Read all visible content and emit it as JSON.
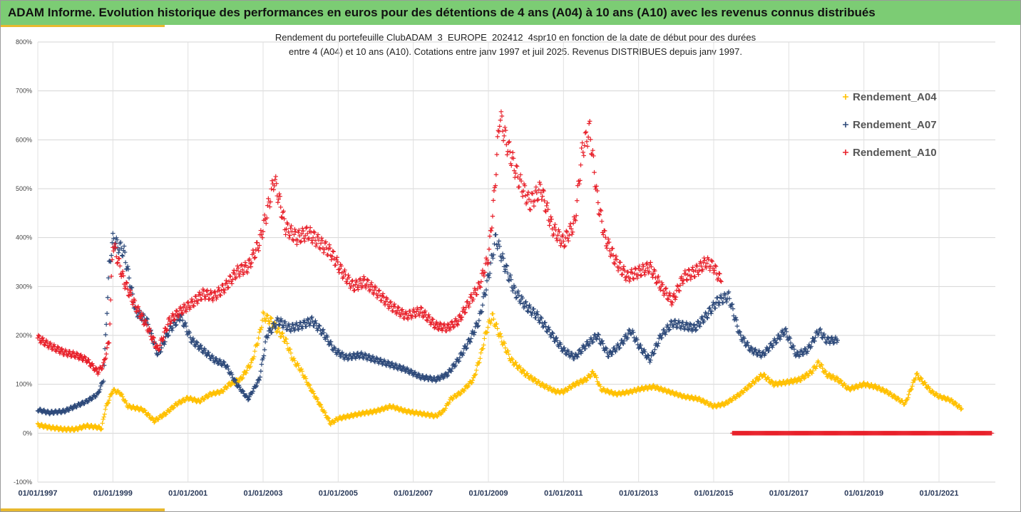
{
  "header": {
    "title": "ADAM Informe. Evolution historique des performances en euros pour des détentions de 4 ans (A04) à 10 ans (A10) avec les revenus connus distribués"
  },
  "chart_data": {
    "type": "scatter",
    "title": "Rendement du portefeuille ClubADAM_3_EUROPE_202412_4spr10  en fonction de la date de début pour des durées",
    "subtitle": "entre 4 (A04) et 10 ans (A10). Cotations entre janv 1997 et juil 2025. Revenus DISTRIBUES depuis janv 1997.",
    "xlabel": "",
    "ylabel": "",
    "ylim": [
      -100,
      800
    ],
    "xlim": [
      1997.0,
      2022.5
    ],
    "y_ticks": [
      "-100%",
      "0%",
      "100%",
      "200%",
      "300%",
      "400%",
      "500%",
      "600%",
      "700%",
      "800%"
    ],
    "y_tick_values": [
      -100,
      0,
      100,
      200,
      300,
      400,
      500,
      600,
      700,
      800
    ],
    "x_ticks": [
      "01/01/1997",
      "01/01/1999",
      "01/01/2001",
      "01/01/2003",
      "01/01/2005",
      "01/01/2007",
      "01/01/2009",
      "01/01/2011",
      "01/01/2013",
      "01/01/2015",
      "01/01/2017",
      "01/01/2019",
      "01/01/2021"
    ],
    "x_tick_values": [
      1997,
      1999,
      2001,
      2003,
      2005,
      2007,
      2009,
      2011,
      2013,
      2015,
      2017,
      2019,
      2021
    ],
    "grid": "horizontal",
    "legend_position": "right",
    "marker": "+",
    "series": [
      {
        "name": "Rendement_A04",
        "color": "#ffc000",
        "x": [
          1997.0,
          1997.3,
          1997.7,
          1998.0,
          1998.3,
          1998.6,
          1998.7,
          1998.8,
          1999.0,
          1999.2,
          1999.4,
          1999.8,
          2000.1,
          2000.4,
          2000.7,
          2001.0,
          2001.3,
          2001.6,
          2001.9,
          2002.1,
          2002.4,
          2002.7,
          2002.9,
          2003.0,
          2003.2,
          2003.4,
          2003.6,
          2003.8,
          2004.0,
          2004.2,
          2004.5,
          2004.8,
          2005.0,
          2005.3,
          2005.6,
          2006.0,
          2006.4,
          2006.8,
          2007.2,
          2007.6,
          2007.8,
          2008.0,
          2008.3,
          2008.6,
          2008.8,
          2008.95,
          2009.1,
          2009.3,
          2009.6,
          2010.0,
          2010.4,
          2010.8,
          2011.0,
          2011.3,
          2011.6,
          2011.8,
          2012.0,
          2012.4,
          2012.8,
          2013.0,
          2013.4,
          2013.8,
          2014.2,
          2014.6,
          2015.0,
          2015.3,
          2015.7,
          2016.0,
          2016.3,
          2016.6,
          2017.0,
          2017.3,
          2017.6,
          2017.8,
          2018.0,
          2018.3,
          2018.6,
          2019.0,
          2019.3,
          2019.6,
          2019.9,
          2020.1,
          2020.4,
          2020.8,
          2021.0,
          2021.3,
          2021.6
        ],
        "y": [
          17,
          12,
          8,
          8,
          15,
          12,
          10,
          50,
          88,
          82,
          55,
          48,
          25,
          40,
          60,
          72,
          65,
          80,
          85,
          100,
          110,
          145,
          200,
          240,
          230,
          210,
          190,
          150,
          130,
          100,
          60,
          20,
          30,
          35,
          40,
          45,
          55,
          45,
          40,
          35,
          45,
          70,
          85,
          110,
          160,
          210,
          240,
          200,
          150,
          120,
          100,
          85,
          85,
          100,
          110,
          125,
          90,
          80,
          85,
          90,
          95,
          85,
          75,
          70,
          55,
          60,
          80,
          100,
          120,
          100,
          105,
          110,
          125,
          145,
          120,
          110,
          90,
          100,
          95,
          85,
          70,
          60,
          120,
          85,
          75,
          68,
          50
        ]
      },
      {
        "name": "Rendement_A07",
        "color": "#2e4a7a",
        "x": [
          1997.0,
          1997.3,
          1997.7,
          1998.0,
          1998.3,
          1998.6,
          1998.75,
          1998.9,
          1999.0,
          1999.3,
          1999.6,
          1999.9,
          2000.2,
          2000.5,
          2000.8,
          2001.1,
          2001.4,
          2001.7,
          2002.0,
          2002.3,
          2002.6,
          2002.9,
          2003.1,
          2003.4,
          2003.7,
          2004.0,
          2004.3,
          2004.6,
          2004.9,
          2005.2,
          2005.6,
          2006.0,
          2006.4,
          2006.8,
          2007.2,
          2007.6,
          2007.9,
          2008.2,
          2008.5,
          2008.75,
          2009.0,
          2009.2,
          2009.4,
          2009.7,
          2010.0,
          2010.3,
          2010.7,
          2011.0,
          2011.3,
          2011.6,
          2011.9,
          2012.2,
          2012.5,
          2012.8,
          2013.0,
          2013.3,
          2013.6,
          2013.9,
          2014.2,
          2014.5,
          2014.8,
          2015.1,
          2015.4,
          2015.7,
          2016.0,
          2016.3,
          2016.6,
          2016.9,
          2017.2,
          2017.5,
          2017.8,
          2018.0,
          2018.3
        ],
        "y": [
          48,
          42,
          45,
          55,
          65,
          80,
          110,
          340,
          395,
          370,
          250,
          230,
          160,
          210,
          240,
          190,
          170,
          150,
          140,
          100,
          70,
          110,
          200,
          230,
          215,
          220,
          230,
          205,
          170,
          155,
          160,
          150,
          140,
          130,
          115,
          110,
          120,
          150,
          190,
          230,
          320,
          400,
          350,
          290,
          260,
          240,
          200,
          170,
          155,
          180,
          200,
          160,
          180,
          210,
          180,
          150,
          200,
          225,
          220,
          215,
          240,
          270,
          280,
          200,
          170,
          160,
          185,
          210,
          160,
          170,
          210,
          190,
          190
        ]
      },
      {
        "name": "Rendement_A10",
        "color": "#e8202a",
        "x": [
          1997.0,
          1997.3,
          1997.7,
          1998.0,
          1998.3,
          1998.6,
          1998.75,
          1998.9,
          1999.0,
          1999.3,
          1999.6,
          1999.9,
          2000.2,
          2000.5,
          2000.8,
          2001.1,
          2001.4,
          2001.7,
          2002.0,
          2002.3,
          2002.6,
          2002.9,
          2003.1,
          2003.3,
          2003.6,
          2003.9,
          2004.2,
          2004.5,
          2004.8,
          2005.1,
          2005.4,
          2005.7,
          2006.0,
          2006.4,
          2006.8,
          2007.2,
          2007.6,
          2007.9,
          2008.2,
          2008.5,
          2008.75,
          2009.0,
          2009.15,
          2009.3,
          2009.5,
          2009.8,
          2010.1,
          2010.4,
          2010.7,
          2011.0,
          2011.3,
          2011.5,
          2011.7,
          2011.9,
          2012.1,
          2012.4,
          2012.7,
          2013.0,
          2013.3,
          2013.6,
          2013.9,
          2014.2,
          2014.5,
          2014.8,
          2015.0,
          2015.2
        ],
        "y": [
          195,
          180,
          165,
          160,
          150,
          125,
          140,
          190,
          390,
          310,
          260,
          220,
          170,
          230,
          250,
          265,
          285,
          280,
          300,
          330,
          340,
          390,
          450,
          520,
          420,
          400,
          410,
          390,
          370,
          330,
          300,
          310,
          290,
          260,
          240,
          250,
          220,
          215,
          230,
          270,
          300,
          360,
          480,
          650,
          590,
          520,
          470,
          500,
          420,
          390,
          430,
          580,
          620,
          480,
          400,
          350,
          320,
          330,
          340,
          300,
          270,
          320,
          330,
          350,
          340,
          310
        ]
      },
      {
        "name": "",
        "color": "#e8202a",
        "x": [
          2015.5,
          2022.4
        ],
        "y": [
          0,
          0
        ]
      }
    ]
  }
}
